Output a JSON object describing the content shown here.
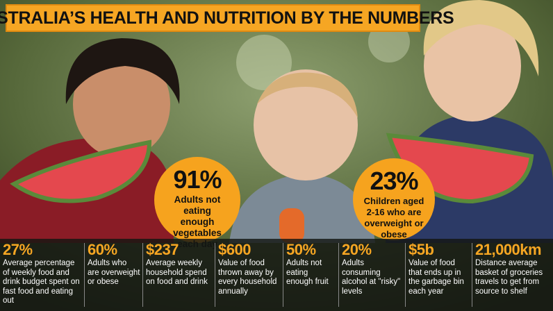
{
  "header": {
    "title": "AUSTRALIA’S HEALTH AND NUTRITION BY THE NUMBERS"
  },
  "highlights": [
    {
      "value": "91%",
      "text": "Adults not eating enough vegetables each day"
    },
    {
      "value": "23%",
      "text": "Children aged 2-16 who are overweight or obese"
    }
  ],
  "stats": [
    {
      "value": "27%",
      "text": "Average percentage of weekly food and drink budget spent on fast food and eating out"
    },
    {
      "value": "60%",
      "text": "Adults who are overweight or obese"
    },
    {
      "value": "$237",
      "text": "Average weekly household spend on food and drink"
    },
    {
      "value": "$600",
      "text": "Value of food thrown away by every household annually"
    },
    {
      "value": "50%",
      "text": "Adults not eating enough fruit"
    },
    {
      "value": "20%",
      "text": "Adults consuming alcohol at \"risky\" levels"
    },
    {
      "value": "$5b",
      "text": "Value of food that ends up in the garbage bin each year"
    },
    {
      "value": "21,000km",
      "text": "Distance average basket of groceries travels to get from source to shelf"
    }
  ]
}
